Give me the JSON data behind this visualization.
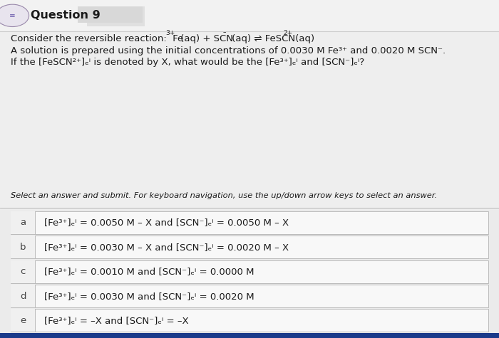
{
  "bg_color": "#ebebeb",
  "header_bg": "#f2f2f2",
  "title": "Question 9",
  "q_line1": "Consider the reversible reaction:  Fe",
  "q_line1_sup1": "3+",
  "q_line1_mid": " (aq) + SCN",
  "q_line1_sup2": "–",
  "q_line1_end": " (aq) ⇌ FeSCN",
  "q_line1_sup3": "2+",
  "q_line1_fin": " (aq)",
  "q_line2": "A solution is prepared using the initial concentrations of 0.0030 M Fe³⁺ and 0.0020 M SCN⁻.",
  "q_line3": "If the [FeSCN²⁺]ₑⁱ is denoted by X, what would be the [Fe³⁺]ₑⁱ and [SCN⁻]ₑⁱ?",
  "instruction": "Select an answer and submit. For keyboard navigation, use the up/down arrow keys to select an answer.",
  "options": [
    {
      "label": "a",
      "text": "[Fe³⁺]ₑⁱ = 0.0050 M – X and [SCN⁻]ₑⁱ = 0.0050 M – X"
    },
    {
      "label": "b",
      "text": "[Fe³⁺]ₑⁱ = 0.0030 M – X and [SCN⁻]ₑⁱ = 0.0020 M – X"
    },
    {
      "label": "c",
      "text": "[Fe³⁺]ₑⁱ = 0.0010 M and [SCN⁻]ₑⁱ = 0.0000 M"
    },
    {
      "label": "d",
      "text": "[Fe³⁺]ₑⁱ = 0.0030 M and [SCN⁻]ₑⁱ = 0.0020 M"
    },
    {
      "label": "e",
      "text": "[Fe³⁺]ₑⁱ = –X and [SCN⁻]ₑⁱ = –X"
    }
  ],
  "option_box_color": "#f8f8f8",
  "option_border_color": "#bbbbbb",
  "text_color": "#1a1a1a",
  "label_color": "#444444",
  "bottom_bar_color": "#1a3a8a",
  "header_border_color": "#cccccc",
  "divider_color": "#aaaaaa"
}
